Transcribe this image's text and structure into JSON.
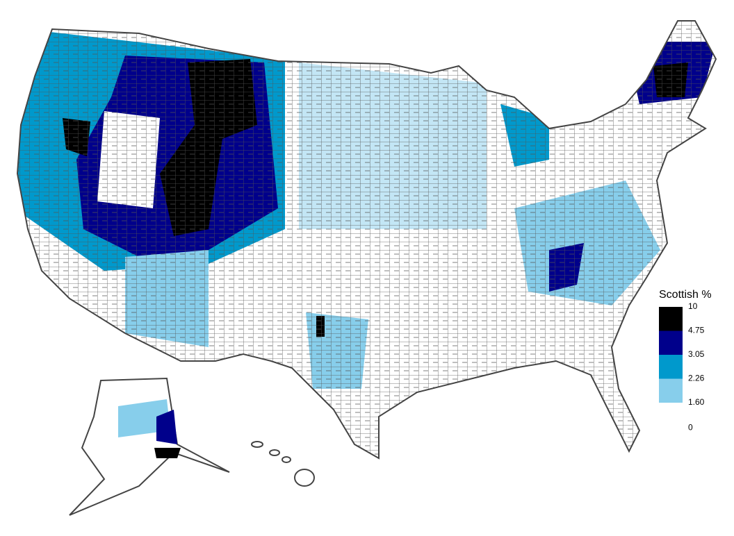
{
  "legend": {
    "title": "Scottish %",
    "breaks": [
      10,
      4.75,
      3.05,
      2.26,
      {
        "value": 1.6,
        "label": "1.60"
      },
      0
    ],
    "colors": [
      "#000000",
      "#00008b",
      "#0099cc",
      "#87ceeb",
      "#ffffff"
    ]
  }
}
